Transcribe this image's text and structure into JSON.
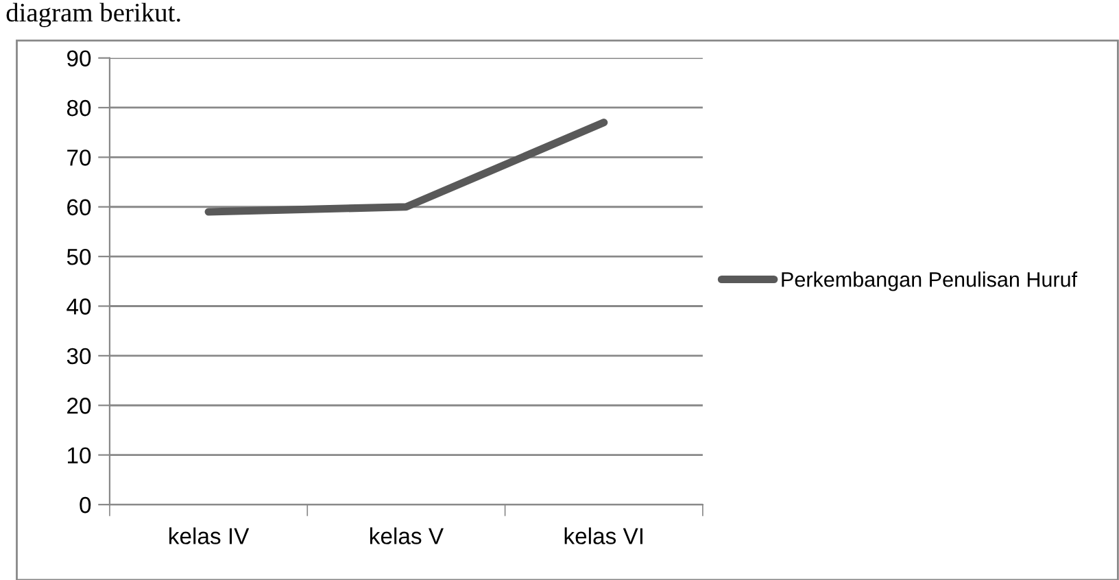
{
  "chart_data": {
    "type": "line",
    "annotations": [
      "diagram berikut."
    ],
    "categories": [
      "kelas IV",
      "kelas V",
      "kelas VI"
    ],
    "series": [
      {
        "name": "Perkembangan Penulisan Huruf",
        "color": "#595959",
        "values": [
          59,
          60,
          77
        ]
      }
    ],
    "ylim": [
      0,
      90
    ],
    "yticks": [
      0,
      10,
      20,
      30,
      40,
      50,
      60,
      70,
      80,
      90
    ],
    "grid": "y",
    "legend": "right",
    "marker": "none",
    "line_style": "solid"
  }
}
